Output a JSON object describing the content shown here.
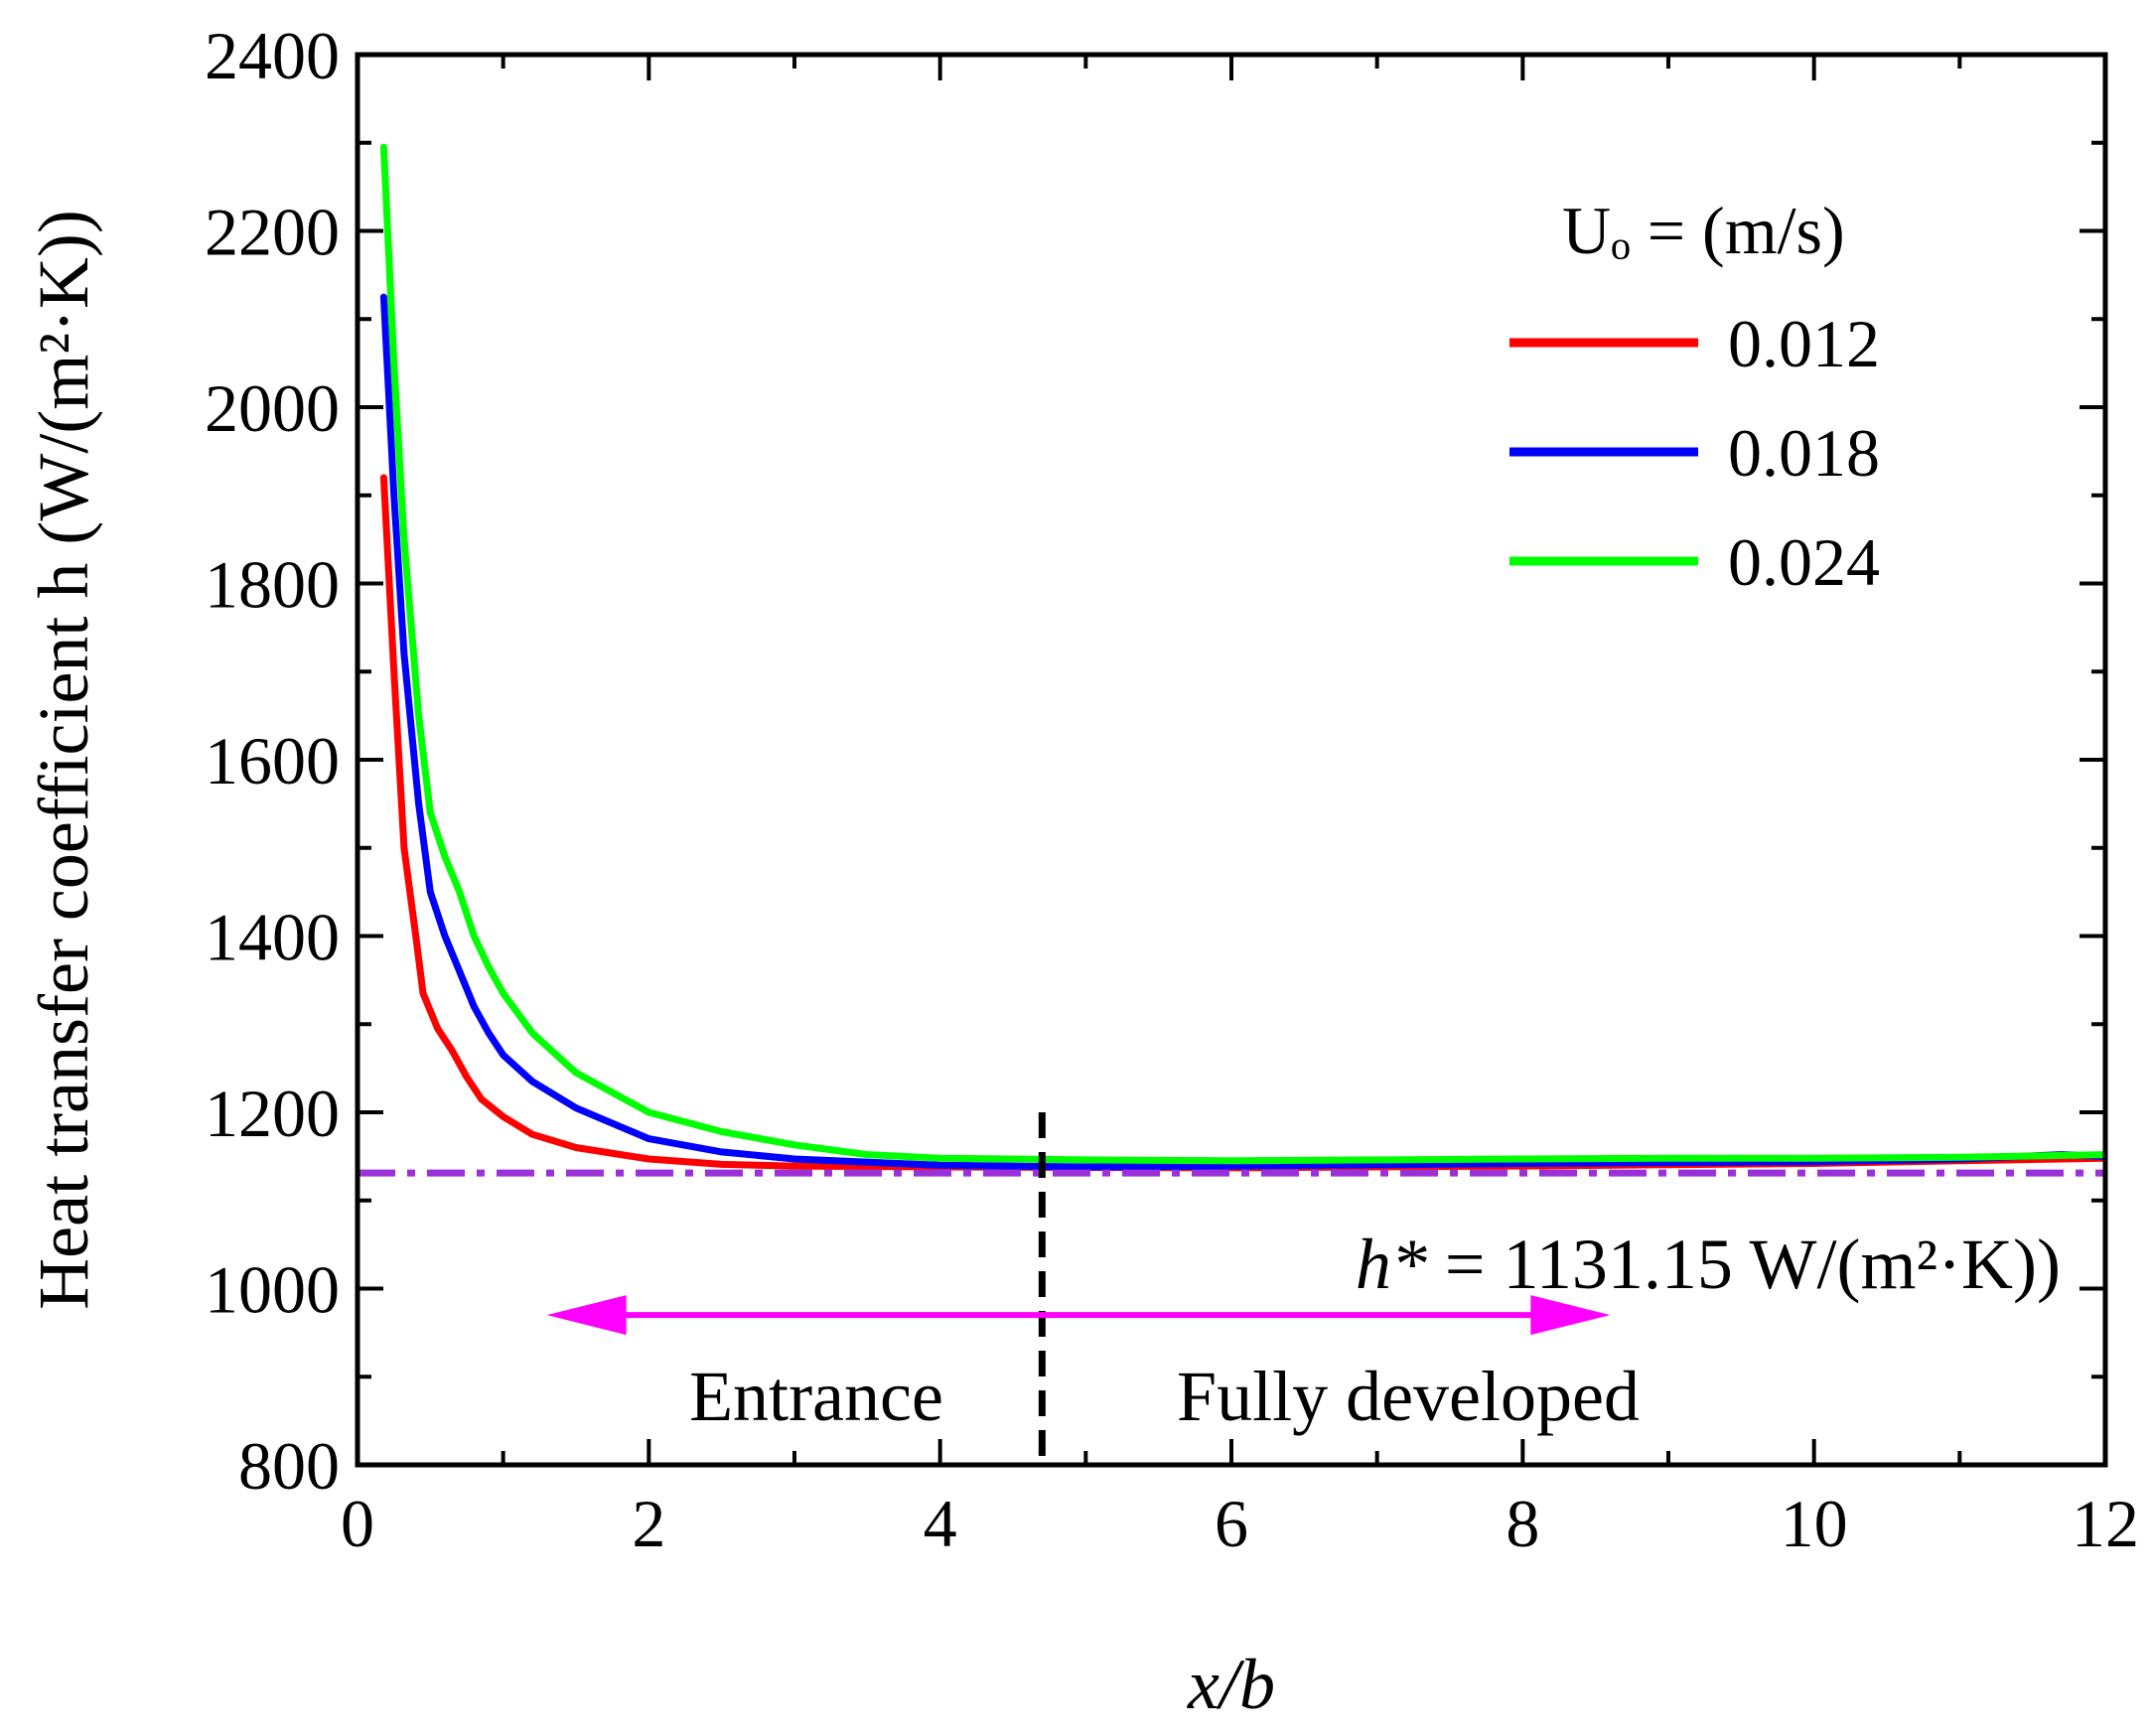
{
  "chart_data": {
    "type": "line",
    "title": "",
    "xlabel": "x/b",
    "ylabel": "Heat transfer coefficient h (W/(m²·K))",
    "xlim": [
      0,
      12
    ],
    "ylim": [
      800,
      2400
    ],
    "x_ticks": [
      "0",
      "2",
      "4",
      "6",
      "8",
      "10",
      "12"
    ],
    "y_ticks": [
      "800",
      "1000",
      "1200",
      "1400",
      "1600",
      "1800",
      "2000",
      "2200",
      "2400"
    ],
    "grid": false,
    "legend": {
      "title": "Uₒ =  (m/s)",
      "position": "top-right",
      "entries": [
        "0.012",
        "0.018",
        "0.024"
      ]
    },
    "series": [
      {
        "name": "0.012",
        "color": "#ff0000",
        "points": [
          [
            0.18,
            1920
          ],
          [
            0.25,
            1700
          ],
          [
            0.32,
            1500
          ],
          [
            0.4,
            1400
          ],
          [
            0.45,
            1335
          ],
          [
            0.55,
            1295
          ],
          [
            0.65,
            1270
          ],
          [
            0.75,
            1240
          ],
          [
            0.85,
            1215
          ],
          [
            1.0,
            1195
          ],
          [
            1.2,
            1175
          ],
          [
            1.5,
            1160
          ],
          [
            2.0,
            1147
          ],
          [
            2.5,
            1141
          ],
          [
            3.0,
            1139
          ],
          [
            4.0,
            1138
          ],
          [
            6.0,
            1137
          ],
          [
            8.0,
            1139
          ],
          [
            10.0,
            1142
          ],
          [
            11.0,
            1145
          ],
          [
            12.0,
            1148
          ]
        ]
      },
      {
        "name": "0.018",
        "color": "#0000ff",
        "points": [
          [
            0.18,
            2125
          ],
          [
            0.25,
            1900
          ],
          [
            0.32,
            1720
          ],
          [
            0.42,
            1550
          ],
          [
            0.5,
            1450
          ],
          [
            0.6,
            1400
          ],
          [
            0.7,
            1360
          ],
          [
            0.8,
            1320
          ],
          [
            0.9,
            1290
          ],
          [
            1.0,
            1265
          ],
          [
            1.2,
            1235
          ],
          [
            1.5,
            1205
          ],
          [
            2.0,
            1170
          ],
          [
            2.5,
            1155
          ],
          [
            3.0,
            1147
          ],
          [
            4.0,
            1140
          ],
          [
            5.0,
            1138
          ],
          [
            6.0,
            1139
          ],
          [
            8.0,
            1142
          ],
          [
            10.0,
            1144
          ],
          [
            11.0,
            1147
          ],
          [
            11.7,
            1152
          ],
          [
            12.0,
            1150
          ]
        ]
      },
      {
        "name": "0.024",
        "color": "#00ff00",
        "points": [
          [
            0.18,
            2295
          ],
          [
            0.25,
            2050
          ],
          [
            0.32,
            1850
          ],
          [
            0.42,
            1650
          ],
          [
            0.5,
            1540
          ],
          [
            0.6,
            1490
          ],
          [
            0.7,
            1450
          ],
          [
            0.8,
            1400
          ],
          [
            0.9,
            1365
          ],
          [
            1.0,
            1335
          ],
          [
            1.2,
            1290
          ],
          [
            1.5,
            1245
          ],
          [
            2.0,
            1200
          ],
          [
            2.5,
            1178
          ],
          [
            3.0,
            1163
          ],
          [
            3.5,
            1152
          ],
          [
            4.0,
            1148
          ],
          [
            5.0,
            1146
          ],
          [
            6.0,
            1145
          ],
          [
            7.0,
            1146
          ],
          [
            8.0,
            1147
          ],
          [
            9.0,
            1148
          ],
          [
            10.0,
            1148
          ],
          [
            11.0,
            1149
          ],
          [
            12.0,
            1152
          ]
        ]
      }
    ],
    "reference_line": {
      "y": 1131.15,
      "color": "#9b30d9",
      "label_prefix": "h*",
      "label_rest": " = 1131.15 W/(m²·K))"
    },
    "divider_x": 4.7,
    "arrow": {
      "color": "#ff00ff",
      "x_from": 1.3,
      "x_to": 8.6,
      "y": 970
    },
    "region_labels": [
      "Entrance",
      "Fully developed"
    ]
  }
}
